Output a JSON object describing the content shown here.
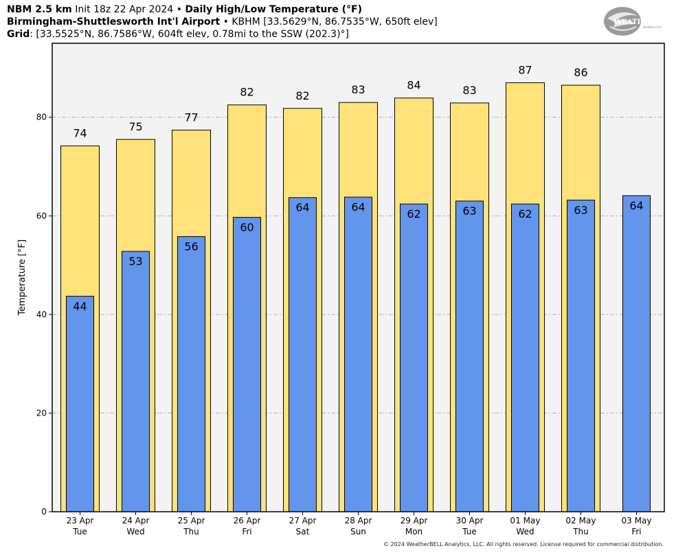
{
  "header": {
    "line1_model": "NBM 2.5 km",
    "line1_init": "Init 18z 22 Apr 2024",
    "line1_sep": "•",
    "line1_product": "Daily High/Low Temperature (°F)",
    "line2_station": "Birmingham-Shuttlesworth Int'l Airport",
    "line2_sep": "•",
    "line2_detail": "KBHM [33.5629°N, 86.7535°W, 650ft elev]",
    "line3_label": "Grid",
    "line3_detail": ": [33.5525°N, 86.7586°W, 604ft elev, 0.78mi to the SSW (202.3)°]"
  },
  "logo": {
    "text": "WeatherBELL",
    "icon": "weatherbell-swirl-logo"
  },
  "copyright": "© 2024 WeatherBELL Analytics, LLC. All rights reserved. License required for commercial distribution.",
  "colors": {
    "high": "#ffe27a",
    "low": "#6495ed",
    "plot_bg": "#f3f3f3",
    "grid": "#b0b0b0"
  },
  "chart_data": {
    "type": "bar",
    "title": "Daily High/Low Temperature (°F)",
    "ylabel": "Temperature [°F]",
    "ylim": [
      0,
      95
    ],
    "yticks": [
      0,
      20,
      40,
      60,
      80
    ],
    "grid": "horizontal dashed",
    "categories": [
      [
        "23 Apr",
        "Tue"
      ],
      [
        "24 Apr",
        "Wed"
      ],
      [
        "25 Apr",
        "Thu"
      ],
      [
        "26 Apr",
        "Fri"
      ],
      [
        "27 Apr",
        "Sat"
      ],
      [
        "28 Apr",
        "Sun"
      ],
      [
        "29 Apr",
        "Mon"
      ],
      [
        "30 Apr",
        "Tue"
      ],
      [
        "01 May",
        "Wed"
      ],
      [
        "02 May",
        "Thu"
      ],
      [
        "03 May",
        "Fri"
      ]
    ],
    "series": [
      {
        "key": "high",
        "values": [
          74.2,
          75.5,
          77.4,
          82.5,
          81.8,
          83.0,
          83.9,
          82.9,
          87.0,
          86.5,
          null
        ],
        "labels": [
          "74",
          "75",
          "77",
          "82",
          "82",
          "83",
          "84",
          "83",
          "87",
          "86",
          ""
        ]
      },
      {
        "key": "low",
        "values": [
          43.7,
          52.8,
          55.8,
          59.7,
          63.7,
          63.8,
          62.4,
          63.0,
          62.4,
          63.2,
          64.1
        ],
        "labels": [
          "44",
          "53",
          "56",
          "60",
          "64",
          "64",
          "62",
          "63",
          "62",
          "63",
          "64"
        ]
      }
    ]
  }
}
